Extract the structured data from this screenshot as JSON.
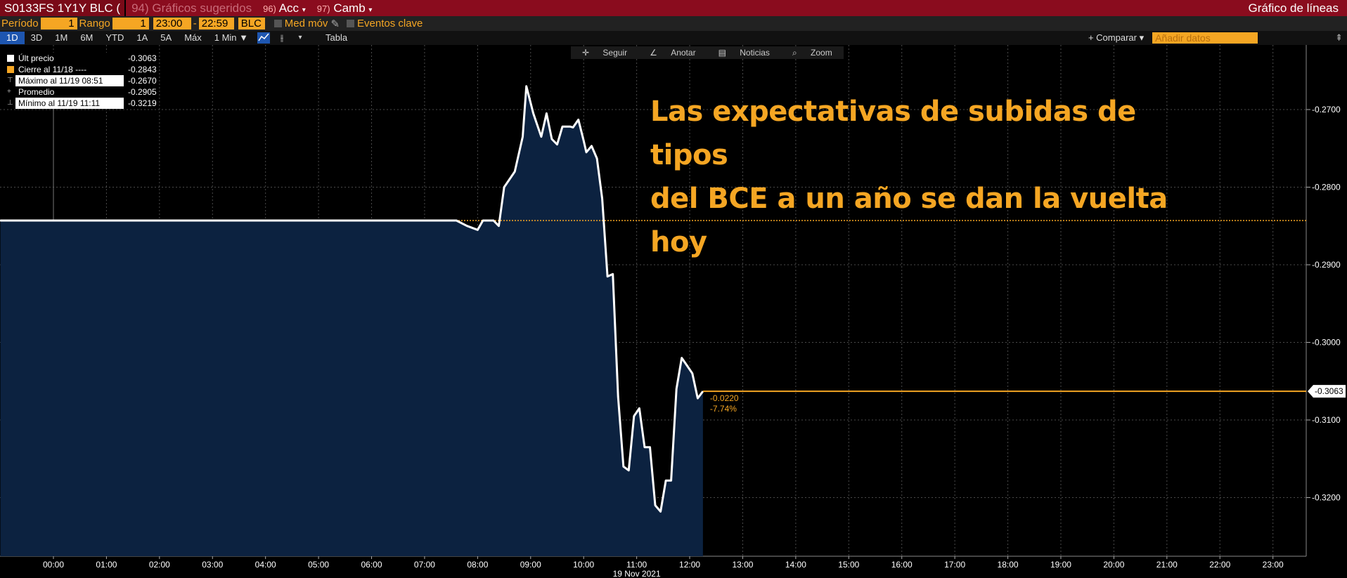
{
  "topbar": {
    "security": "S0133FS 1Y1Y BLC (",
    "suggested": "94) Gráficos sugeridos",
    "menu1_num": "96)",
    "menu1": "Acc",
    "menu2_num": "97)",
    "menu2": "Camb",
    "right_title": "Gráfico de líneas"
  },
  "settings": {
    "period_label": "Período",
    "period_value": "1",
    "range_label": "Rango",
    "range_value": "1",
    "time_from": "23:00",
    "dash": "-",
    "time_to": "22:59",
    "source": "BLC",
    "moving_avg": "Med móv",
    "key_events": "Eventos clave"
  },
  "range_buttons": [
    "1D",
    "3D",
    "1M",
    "6M",
    "YTD",
    "1A",
    "5A",
    "Máx"
  ],
  "interval": "1 Min ▼",
  "table_label": "Tabla",
  "compare_label": "+ Comparar ▾",
  "add_data_placeholder": "Añadir datos",
  "tools": [
    "Seguir",
    "Anotar",
    "Noticias",
    "Zoom"
  ],
  "legend": [
    {
      "name": "Últ precio",
      "value": "-0.3063",
      "color": "#ffffff"
    },
    {
      "name": "Cierre al 11/18 ----",
      "value": "-0.2843",
      "color": "#f5a623"
    },
    {
      "name": "Máximo al 11/19 08:51",
      "value": "-0.2670",
      "color": ""
    },
    {
      "name": "Promedio",
      "value": "-0.2905",
      "color": ""
    },
    {
      "name": "Mínimo al 11/19 11:11",
      "value": "-0.3219",
      "color": ""
    }
  ],
  "annotation_line1": "Las expectativas de subidas de tipos",
  "annotation_line2": "del BCE a un año se dan  la vuelta hoy",
  "colors": {
    "accent": "#f5a623",
    "area": "#0c2240",
    "line": "#ffffff",
    "grid": "#4a4a4a"
  },
  "chart_data": {
    "type": "line",
    "title": "",
    "xlabel": "19 Nov 2021",
    "ylabel": "",
    "ylim": [
      -0.3263,
      -0.2615
    ],
    "xlim": [
      -1.0,
      23.75
    ],
    "x_ticks": [
      "00:00",
      "01:00",
      "02:00",
      "03:00",
      "04:00",
      "05:00",
      "06:00",
      "07:00",
      "08:00",
      "09:00",
      "10:00",
      "11:00",
      "12:00",
      "13:00",
      "14:00",
      "15:00",
      "16:00",
      "17:00",
      "18:00",
      "19:00",
      "20:00",
      "21:00",
      "22:00",
      "23:00"
    ],
    "y_ticks": [
      "-0.2700",
      "-0.2800",
      "-0.2900",
      "-0.3000",
      "-0.3100",
      "-0.3200"
    ],
    "y_tick_values": [
      -0.27,
      -0.28,
      -0.29,
      -0.3,
      -0.31,
      -0.32
    ],
    "last_price": -0.3063,
    "last_price_label": "-0.3063",
    "prev_close": -0.2843,
    "change_abs": "-0.0220",
    "change_pct": "-7.74%",
    "series": [
      {
        "name": "Últ precio",
        "x": [
          -1.0,
          7.6,
          7.8,
          8.0,
          8.1,
          8.3,
          8.4,
          8.5,
          8.7,
          8.85,
          8.92,
          9.05,
          9.2,
          9.3,
          9.4,
          9.5,
          9.6,
          9.75,
          9.8,
          9.9,
          10.0,
          10.05,
          10.15,
          10.25,
          10.35,
          10.45,
          10.55,
          10.65,
          10.75,
          10.85,
          10.95,
          11.05,
          11.15,
          11.25,
          11.35,
          11.45,
          11.55,
          11.65,
          11.75,
          11.85,
          11.95,
          12.05,
          12.15,
          12.25
        ],
        "y": [
          -0.2843,
          -0.2843,
          -0.285,
          -0.2855,
          -0.2843,
          -0.2843,
          -0.285,
          -0.28,
          -0.278,
          -0.2735,
          -0.267,
          -0.2705,
          -0.2735,
          -0.2705,
          -0.2738,
          -0.2745,
          -0.2722,
          -0.2722,
          -0.2723,
          -0.2713,
          -0.274,
          -0.2755,
          -0.2747,
          -0.2763,
          -0.2815,
          -0.2915,
          -0.2912,
          -0.307,
          -0.316,
          -0.3165,
          -0.3095,
          -0.3085,
          -0.3135,
          -0.3135,
          -0.321,
          -0.3218,
          -0.3178,
          -0.3178,
          -0.306,
          -0.302,
          -0.303,
          -0.304,
          -0.3072,
          -0.3063
        ]
      },
      {
        "name": "Cierre al 11/18",
        "x": [
          7.6,
          23.75
        ],
        "y": [
          -0.2843,
          -0.2843
        ]
      }
    ],
    "grid": true,
    "legend_position": "top-left"
  }
}
